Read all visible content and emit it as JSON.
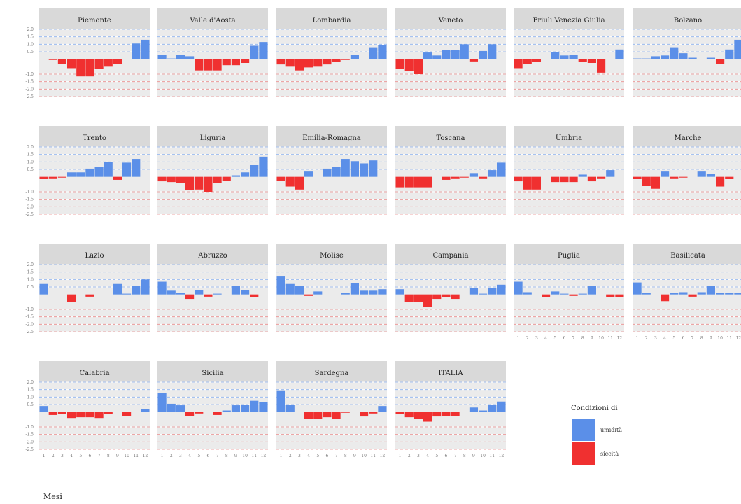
{
  "chart_data": {
    "type": "bar",
    "x_label": "Mesi",
    "x_ticks": [
      "1",
      "2",
      "3",
      "4",
      "5",
      "6",
      "7",
      "8",
      "9",
      "10",
      "11",
      "12"
    ],
    "y_ticks": [
      "2.0",
      "1.5",
      "1.0",
      "0.5",
      "-1.0",
      "-1.5",
      "-2.0",
      "-2.5"
    ],
    "y_range": [
      -2.5,
      2.0
    ],
    "grid": true,
    "legend": {
      "title": "Condizioni di",
      "position": "bottom-right",
      "items": [
        {
          "label": "umidità",
          "color": "#5b8fe8"
        },
        {
          "label": "siccità",
          "color": "#f03030"
        }
      ]
    },
    "panels": [
      {
        "title": "Piemonte",
        "values": [
          0,
          -0.05,
          -0.3,
          -0.6,
          -1.15,
          -1.15,
          -0.65,
          -0.5,
          -0.3,
          0,
          1.05,
          1.3
        ]
      },
      {
        "title": "Valle d'Aosta",
        "values": [
          0.3,
          0.05,
          0.3,
          0.2,
          -0.75,
          -0.75,
          -0.75,
          -0.4,
          -0.4,
          -0.25,
          0.9,
          1.15
        ]
      },
      {
        "title": "Lombardia",
        "values": [
          -0.35,
          -0.5,
          -0.75,
          -0.55,
          -0.5,
          -0.35,
          -0.2,
          -0.05,
          0.3,
          0,
          0.8,
          0.95
        ]
      },
      {
        "title": "Veneto",
        "values": [
          -0.65,
          -0.8,
          -1.0,
          0.45,
          0.25,
          0.6,
          0.6,
          1.0,
          -0.15,
          0.55,
          1.0,
          0
        ]
      },
      {
        "title": "Friuli Venezia Giulia",
        "values": [
          -0.6,
          -0.3,
          -0.2,
          0,
          0.5,
          0.25,
          0.3,
          -0.2,
          -0.25,
          -0.9,
          0,
          0.65
        ]
      },
      {
        "title": "Bolzano",
        "values": [
          0.05,
          0.05,
          0.2,
          0.25,
          0.8,
          0.4,
          0.1,
          0,
          0.1,
          -0.3,
          0.65,
          1.3
        ]
      },
      {
        "title": "Trento",
        "values": [
          -0.15,
          -0.1,
          -0.05,
          0.3,
          0.3,
          0.55,
          0.65,
          1.0,
          -0.2,
          0.95,
          1.2,
          0
        ]
      },
      {
        "title": "Liguria",
        "values": [
          -0.3,
          -0.35,
          -0.4,
          -0.9,
          -0.85,
          -1.0,
          -0.4,
          -0.25,
          0.1,
          0.3,
          0.8,
          1.35
        ]
      },
      {
        "title": "Emilia-Romagna",
        "values": [
          -0.25,
          -0.65,
          -0.85,
          0.4,
          0,
          0.55,
          0.65,
          1.2,
          1.05,
          0.9,
          1.1,
          0
        ]
      },
      {
        "title": "Toscana",
        "values": [
          -0.7,
          -0.7,
          -0.7,
          -0.7,
          0,
          -0.2,
          -0.1,
          -0.05,
          0.25,
          -0.1,
          0.45,
          0.95
        ]
      },
      {
        "title": "Umbria",
        "values": [
          -0.3,
          -0.85,
          -0.85,
          0,
          -0.35,
          -0.35,
          -0.35,
          0.15,
          -0.3,
          -0.1,
          0.45,
          0
        ]
      },
      {
        "title": "Marche",
        "values": [
          -0.15,
          -0.6,
          -0.8,
          0.4,
          -0.1,
          -0.05,
          0,
          0.4,
          0.2,
          -0.65,
          -0.15,
          0
        ]
      },
      {
        "title": "Lazio",
        "values": [
          0.7,
          0,
          0,
          -0.5,
          0,
          -0.15,
          0,
          0,
          0.7,
          0.05,
          0.55,
          1.0
        ]
      },
      {
        "title": "Abruzzo",
        "values": [
          0.85,
          0.25,
          0.1,
          -0.3,
          0.3,
          -0.15,
          0.05,
          0,
          0.55,
          0.3,
          -0.2,
          0
        ]
      },
      {
        "title": "Molise",
        "values": [
          1.2,
          0.7,
          0.55,
          -0.1,
          0.2,
          0,
          0,
          0.1,
          0.75,
          0.25,
          0.25,
          0.35
        ]
      },
      {
        "title": "Campania",
        "values": [
          0.35,
          -0.5,
          -0.5,
          -0.85,
          -0.3,
          -0.2,
          -0.3,
          0,
          0.45,
          0.05,
          0.45,
          0.65
        ]
      },
      {
        "title": "Puglia",
        "values": [
          0.85,
          0.15,
          0,
          -0.2,
          0.2,
          0.05,
          -0.1,
          0.05,
          0.55,
          0,
          -0.2,
          -0.2
        ]
      },
      {
        "title": "Basilicata",
        "values": [
          0.8,
          0.1,
          0,
          -0.45,
          0.1,
          0.15,
          -0.15,
          0.15,
          0.55,
          0.1,
          0.1,
          0.1
        ]
      },
      {
        "title": "Calabria",
        "values": [
          0.4,
          -0.2,
          -0.15,
          -0.4,
          -0.35,
          -0.35,
          -0.4,
          -0.15,
          0,
          -0.25,
          0,
          0.2
        ]
      },
      {
        "title": "Sicilia",
        "values": [
          1.25,
          0.55,
          0.45,
          -0.25,
          -0.1,
          0,
          -0.2,
          0.1,
          0.45,
          0.5,
          0.75,
          0.65
        ]
      },
      {
        "title": "Sardegna",
        "values": [
          1.45,
          0.5,
          0,
          -0.45,
          -0.45,
          -0.35,
          -0.45,
          -0.05,
          0,
          -0.3,
          -0.1,
          0.4
        ]
      },
      {
        "title": "ITALIA",
        "values": [
          -0.15,
          -0.35,
          -0.45,
          -0.65,
          -0.3,
          -0.25,
          -0.25,
          0,
          0.3,
          0.1,
          0.5,
          0.7
        ]
      }
    ]
  }
}
